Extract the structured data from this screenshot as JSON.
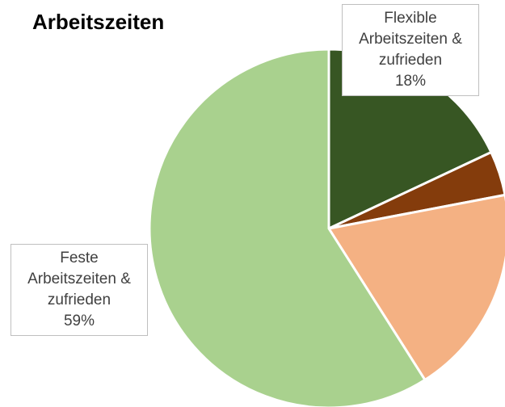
{
  "chart_data": {
    "type": "pie",
    "title": "Arbeitszeiten",
    "categories": [
      "Flexible Arbeitszeiten & zufrieden",
      null,
      null,
      "Feste Arbeitszeiten & zufrieden"
    ],
    "values": [
      18,
      4,
      19,
      59
    ],
    "value_labels": [
      "18%",
      null,
      null,
      "59%"
    ],
    "colors": [
      "#375623",
      "#843c0c",
      "#f4b183",
      "#a9d18e"
    ]
  }
}
